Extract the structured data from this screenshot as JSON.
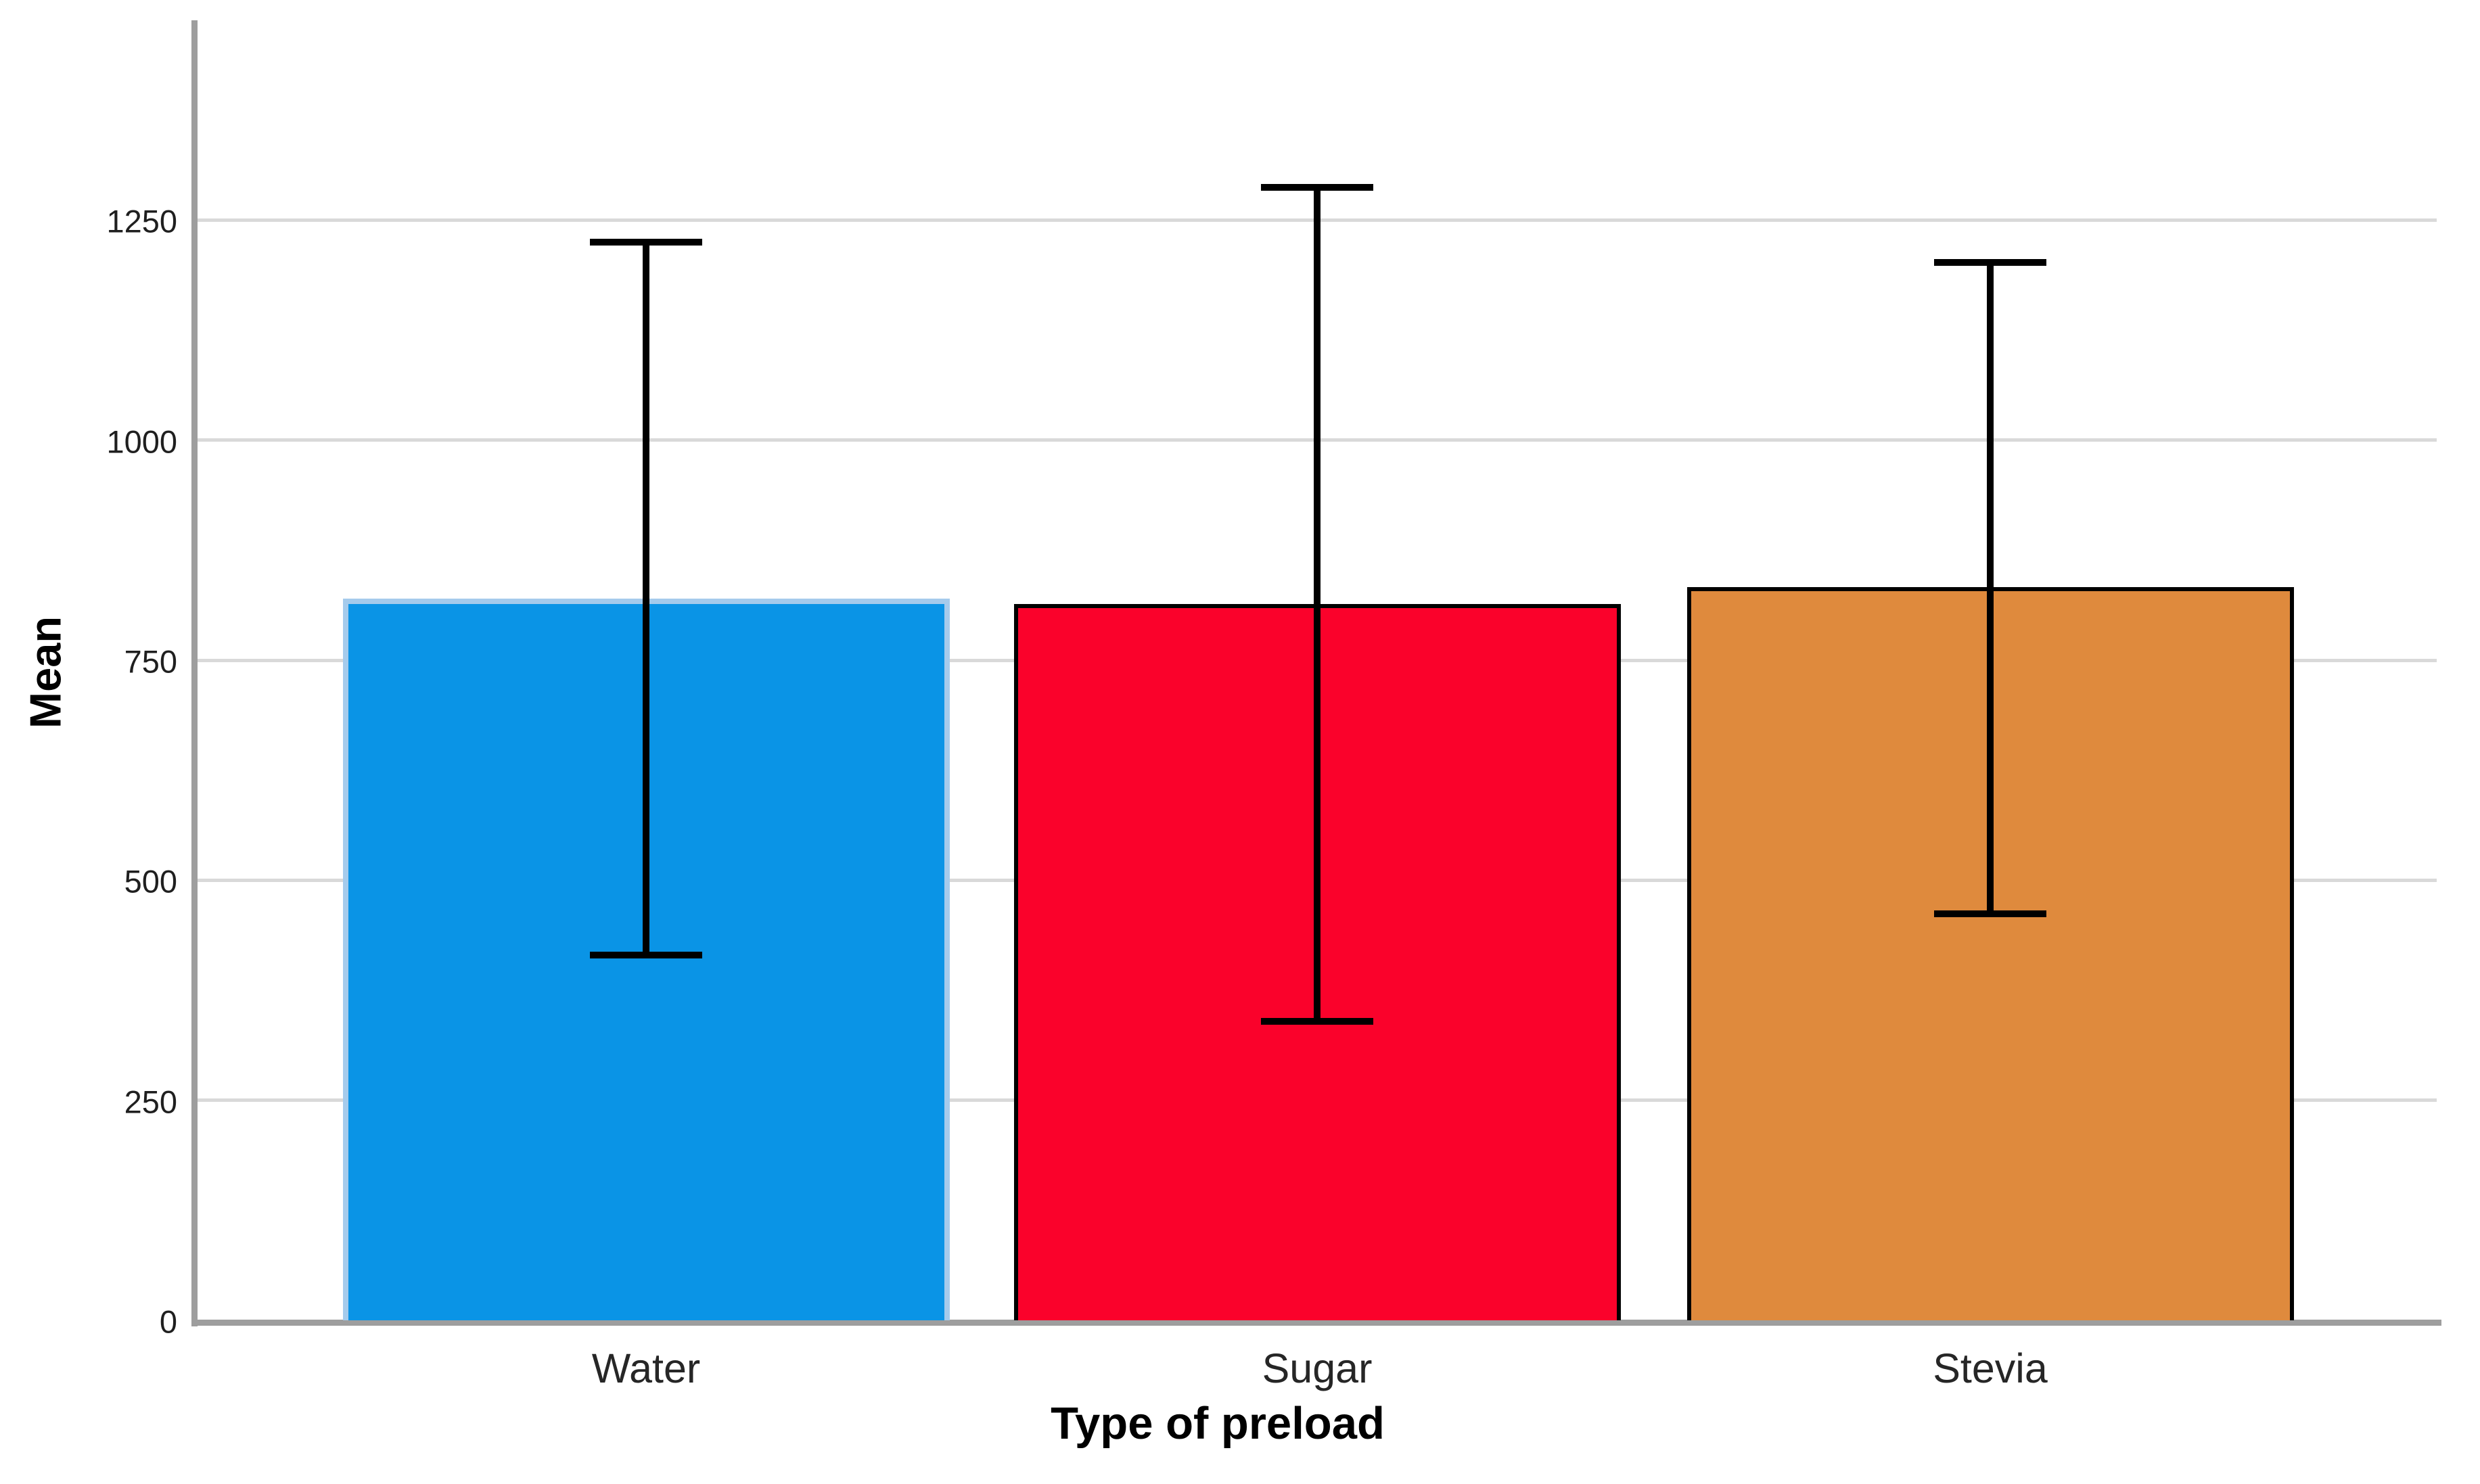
{
  "chart_data": {
    "type": "bar",
    "title": "",
    "xlabel": "Type of preload",
    "ylabel": "Mean",
    "categories": [
      "Water",
      "Sugar",
      "Stevia"
    ],
    "series": [
      {
        "name": "Mean",
        "values": [
          820,
          814,
          833
        ]
      }
    ],
    "error_bars": {
      "upper": [
        1225,
        1287,
        1202
      ],
      "lower": [
        415,
        340,
        462
      ]
    },
    "y_ticks": [
      0,
      250,
      500,
      750,
      1000,
      1250
    ],
    "ylim": [
      0,
      1477
    ],
    "grid": "horizontal-only",
    "legend": "none",
    "bar_colors": [
      "#0a94e6",
      "#fa022b",
      "#df8a3d"
    ],
    "bar_border_colors": [
      "#a5cbec",
      "#000000",
      "#000000"
    ]
  },
  "colors": {
    "background": "#ffffff",
    "gridline": "#d9d9d9",
    "axis_line": "#9e9e9e",
    "error_bar": "#000000",
    "tick_text": "#1f1f1f",
    "category_text": "#262626",
    "title_text": "#000000"
  }
}
